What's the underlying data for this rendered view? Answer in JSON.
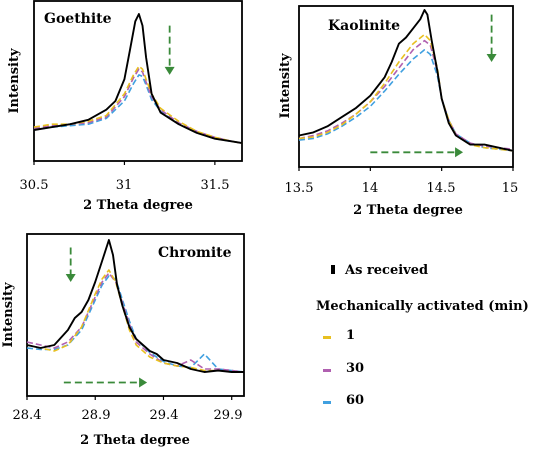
{
  "colors": {
    "as_received": "#000000",
    "min1": "#e8c020",
    "min30": "#b060b0",
    "min60": "#40a0e0",
    "arrow": "#3a8a3a"
  },
  "legend": {
    "as_received": "As received",
    "group_title": "Mechanically activated (min)",
    "items": [
      "1",
      "30",
      "60"
    ]
  },
  "chart_data": [
    {
      "type": "line",
      "title": "Goethite",
      "xlabel": "2 Theta degree",
      "ylabel": "Intensity",
      "xlim": [
        30.5,
        31.65
      ],
      "ylim": [
        0,
        1
      ],
      "xticks": [
        "30.5",
        "31",
        "31.5"
      ],
      "series": [
        {
          "key": "as_received",
          "name": "As received",
          "x": [
            30.5,
            30.6,
            30.7,
            30.8,
            30.9,
            30.95,
            31.0,
            31.03,
            31.06,
            31.08,
            31.1,
            31.12,
            31.15,
            31.2,
            31.3,
            31.4,
            31.5,
            31.6,
            31.65
          ],
          "y": [
            0.2,
            0.22,
            0.24,
            0.27,
            0.34,
            0.4,
            0.55,
            0.75,
            0.95,
            1.0,
            0.92,
            0.7,
            0.45,
            0.32,
            0.24,
            0.18,
            0.14,
            0.12,
            0.11
          ]
        },
        {
          "key": "min1",
          "name": "1",
          "x": [
            30.5,
            30.6,
            30.7,
            30.8,
            30.9,
            31.0,
            31.05,
            31.08,
            31.1,
            31.12,
            31.15,
            31.2,
            31.3,
            31.4,
            31.5,
            31.6,
            31.65
          ],
          "y": [
            0.22,
            0.24,
            0.24,
            0.26,
            0.3,
            0.45,
            0.58,
            0.64,
            0.62,
            0.55,
            0.45,
            0.35,
            0.26,
            0.19,
            0.15,
            0.12,
            0.11
          ]
        },
        {
          "key": "min30",
          "name": "30",
          "x": [
            30.5,
            30.6,
            30.7,
            30.8,
            30.9,
            31.0,
            31.05,
            31.08,
            31.1,
            31.12,
            31.15,
            31.2,
            31.3,
            31.4,
            31.5,
            31.6,
            31.65
          ],
          "y": [
            0.21,
            0.23,
            0.24,
            0.25,
            0.29,
            0.43,
            0.56,
            0.62,
            0.6,
            0.53,
            0.43,
            0.34,
            0.25,
            0.19,
            0.15,
            0.12,
            0.11
          ]
        },
        {
          "key": "min60",
          "name": "60",
          "x": [
            30.5,
            30.6,
            30.7,
            30.8,
            30.9,
            31.0,
            31.05,
            31.08,
            31.1,
            31.12,
            31.15,
            31.2,
            31.3,
            31.4,
            31.5,
            31.6,
            31.65
          ],
          "y": [
            0.2,
            0.22,
            0.23,
            0.24,
            0.28,
            0.4,
            0.52,
            0.58,
            0.57,
            0.51,
            0.41,
            0.33,
            0.24,
            0.18,
            0.14,
            0.12,
            0.11
          ]
        }
      ],
      "annotations": [
        {
          "type": "down-arrow",
          "x": 31.25,
          "y1": 0.92,
          "y2": 0.58
        }
      ]
    },
    {
      "type": "line",
      "title": "Kaolinite",
      "xlabel": "2 Theta degree",
      "ylabel": "Intensity",
      "xlim": [
        13.5,
        15.0
      ],
      "ylim": [
        0,
        1
      ],
      "xticks": [
        "13.5",
        "14",
        "14.5",
        "15"
      ],
      "series": [
        {
          "key": "as_received",
          "name": "As received",
          "x": [
            13.5,
            13.6,
            13.7,
            13.8,
            13.9,
            14.0,
            14.1,
            14.15,
            14.2,
            14.25,
            14.3,
            14.35,
            14.38,
            14.4,
            14.43,
            14.47,
            14.5,
            14.55,
            14.6,
            14.7,
            14.8,
            14.9,
            15.0
          ],
          "y": [
            0.18,
            0.2,
            0.24,
            0.3,
            0.36,
            0.44,
            0.56,
            0.66,
            0.78,
            0.82,
            0.88,
            0.94,
            1.0,
            0.97,
            0.8,
            0.6,
            0.42,
            0.26,
            0.18,
            0.12,
            0.12,
            0.1,
            0.08
          ]
        },
        {
          "key": "min1",
          "name": "1",
          "x": [
            13.5,
            13.6,
            13.7,
            13.8,
            13.9,
            14.0,
            14.1,
            14.2,
            14.3,
            14.38,
            14.42,
            14.47,
            14.5,
            14.55,
            14.6,
            14.7,
            14.8,
            14.9,
            15.0
          ],
          "y": [
            0.16,
            0.17,
            0.2,
            0.25,
            0.32,
            0.4,
            0.52,
            0.66,
            0.78,
            0.84,
            0.8,
            0.62,
            0.42,
            0.28,
            0.18,
            0.12,
            0.1,
            0.09,
            0.08
          ]
        },
        {
          "key": "min30",
          "name": "30",
          "x": [
            13.5,
            13.6,
            13.7,
            13.8,
            13.9,
            14.0,
            14.1,
            14.2,
            14.3,
            14.38,
            14.42,
            14.47,
            14.5,
            14.55,
            14.6,
            14.7,
            14.8,
            14.9,
            15.0
          ],
          "y": [
            0.16,
            0.18,
            0.21,
            0.26,
            0.32,
            0.4,
            0.5,
            0.62,
            0.74,
            0.8,
            0.77,
            0.6,
            0.42,
            0.28,
            0.19,
            0.13,
            0.11,
            0.1,
            0.09
          ]
        },
        {
          "key": "min60",
          "name": "60",
          "x": [
            13.5,
            13.6,
            13.7,
            13.8,
            13.9,
            14.0,
            14.1,
            14.2,
            14.3,
            14.38,
            14.42,
            14.47,
            14.5,
            14.55,
            14.6,
            14.7,
            14.8,
            14.9,
            15.0
          ],
          "y": [
            0.15,
            0.16,
            0.19,
            0.24,
            0.3,
            0.37,
            0.47,
            0.58,
            0.68,
            0.74,
            0.71,
            0.57,
            0.42,
            0.28,
            0.19,
            0.13,
            0.1,
            0.09,
            0.08
          ]
        }
      ],
      "annotations": [
        {
          "type": "down-arrow",
          "x": 14.85,
          "y1": 0.97,
          "y2": 0.66
        },
        {
          "type": "right-arrow",
          "y": 0.07,
          "x1": 14.0,
          "x2": 14.65
        }
      ]
    },
    {
      "type": "line",
      "title": "Chromite",
      "xlabel": "2 Theta degree",
      "ylabel": "Intensity",
      "xlim": [
        28.4,
        29.99
      ],
      "ylim": [
        0,
        1
      ],
      "xticks": [
        "28.4",
        "28.9",
        "29.4",
        "29.9"
      ],
      "series": [
        {
          "key": "as_received",
          "name": "As received",
          "x": [
            28.4,
            28.5,
            28.6,
            28.7,
            28.75,
            28.8,
            28.85,
            28.9,
            28.95,
            29.0,
            29.03,
            29.06,
            29.1,
            29.15,
            29.2,
            29.25,
            29.3,
            29.35,
            29.4,
            29.5,
            29.6,
            29.7,
            29.8,
            29.9,
            29.99
          ],
          "y": [
            0.3,
            0.28,
            0.3,
            0.4,
            0.48,
            0.52,
            0.6,
            0.72,
            0.86,
            1.0,
            0.9,
            0.7,
            0.56,
            0.42,
            0.34,
            0.3,
            0.26,
            0.24,
            0.2,
            0.18,
            0.14,
            0.12,
            0.13,
            0.12,
            0.12
          ]
        },
        {
          "key": "min1",
          "name": "1",
          "x": [
            28.4,
            28.5,
            28.6,
            28.7,
            28.8,
            28.9,
            28.95,
            29.0,
            29.05,
            29.1,
            29.15,
            29.2,
            29.3,
            29.4,
            29.5,
            29.6,
            29.7,
            29.8,
            29.9,
            29.99
          ],
          "y": [
            0.3,
            0.28,
            0.26,
            0.3,
            0.42,
            0.64,
            0.74,
            0.8,
            0.72,
            0.56,
            0.4,
            0.3,
            0.22,
            0.18,
            0.16,
            0.15,
            0.13,
            0.13,
            0.12,
            0.12
          ]
        },
        {
          "key": "min30",
          "name": "30",
          "x": [
            28.4,
            28.5,
            28.6,
            28.7,
            28.8,
            28.9,
            28.95,
            29.0,
            29.05,
            29.1,
            29.15,
            29.2,
            29.3,
            29.4,
            29.5,
            29.6,
            29.7,
            29.8,
            29.9,
            29.99
          ],
          "y": [
            0.32,
            0.3,
            0.28,
            0.32,
            0.42,
            0.62,
            0.72,
            0.78,
            0.72,
            0.58,
            0.44,
            0.32,
            0.24,
            0.18,
            0.16,
            0.2,
            0.14,
            0.14,
            0.13,
            0.12
          ]
        },
        {
          "key": "min60",
          "name": "60",
          "x": [
            28.4,
            28.5,
            28.6,
            28.7,
            28.8,
            28.9,
            28.95,
            29.0,
            29.05,
            29.1,
            29.15,
            29.2,
            29.3,
            29.4,
            29.5,
            29.6,
            29.7,
            29.8,
            29.9,
            29.99
          ],
          "y": [
            0.28,
            0.27,
            0.27,
            0.3,
            0.4,
            0.6,
            0.7,
            0.76,
            0.74,
            0.6,
            0.46,
            0.34,
            0.25,
            0.19,
            0.16,
            0.15,
            0.24,
            0.14,
            0.13,
            0.12
          ]
        }
      ],
      "annotations": [
        {
          "type": "down-arrow",
          "x": 28.72,
          "y1": 0.95,
          "y2": 0.72
        },
        {
          "type": "right-arrow",
          "y": 0.05,
          "x1": 28.67,
          "x2": 29.28
        }
      ]
    }
  ]
}
